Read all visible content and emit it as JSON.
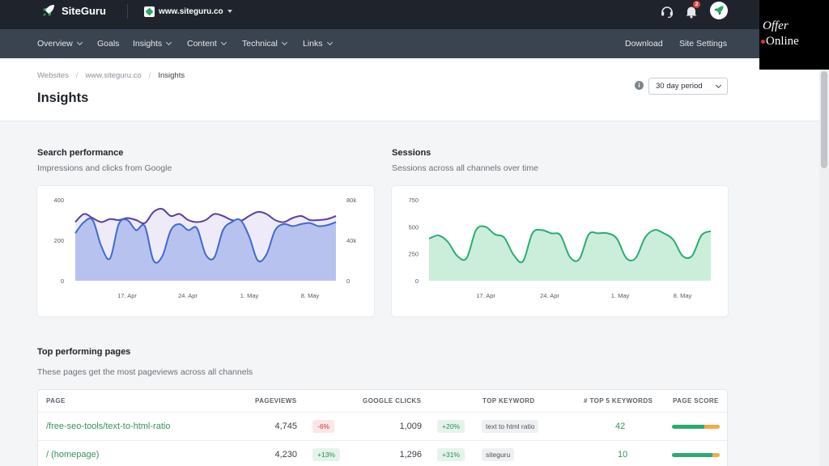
{
  "brand": {
    "name": "SiteGuru",
    "accent": "#2aa866",
    "topbar_bg": "#1f242c",
    "nav_bg": "#3a4350"
  },
  "site_selector": {
    "value": "www.siteguru.co"
  },
  "notifications": {
    "count": "2"
  },
  "watermark": {
    "line1": "Offer",
    "line2": "Online"
  },
  "nav": {
    "items": [
      {
        "label": "Overview",
        "dropdown": true
      },
      {
        "label": "Goals",
        "dropdown": false
      },
      {
        "label": "Insights",
        "dropdown": true
      },
      {
        "label": "Content",
        "dropdown": true
      },
      {
        "label": "Technical",
        "dropdown": true
      },
      {
        "label": "Links",
        "dropdown": true
      }
    ],
    "right": [
      {
        "label": "Download"
      },
      {
        "label": "Site Settings"
      }
    ]
  },
  "breadcrumb": [
    "Websites",
    "www.siteguru.co",
    "Insights"
  ],
  "page_title": "Insights",
  "period_select": {
    "value": "30 day period"
  },
  "search_section": {
    "title": "Search performance",
    "subtitle": "Impressions and clicks from Google"
  },
  "sessions_section": {
    "title": "Sessions",
    "subtitle": "Sessions across all channels over time"
  },
  "chart_data": [
    {
      "type": "area",
      "title": "Search performance",
      "x_ticks": [
        "17. Apr",
        "24. Apr",
        "1. May",
        "8. May"
      ],
      "y_left_ticks": [
        "0",
        "200",
        "400"
      ],
      "y_right_ticks": [
        "0",
        "40k",
        "80k"
      ],
      "ylim_left": [
        0,
        400
      ],
      "ylim_right": [
        0,
        80000
      ],
      "series": [
        {
          "values": [
            290,
            330,
            310,
            290,
            305,
            300,
            310,
            300,
            285,
            340,
            355,
            320,
            330,
            300,
            290,
            300,
            330,
            320,
            300,
            295,
            320,
            340,
            330,
            300,
            290,
            310,
            320,
            300,
            300,
            305,
            320
          ],
          "color": "#5b3f9e",
          "fill": "#eeeaf8"
        },
        {
          "values": [
            235,
            290,
            300,
            170,
            110,
            280,
            300,
            250,
            270,
            100,
            120,
            250,
            280,
            250,
            260,
            130,
            115,
            250,
            290,
            300,
            220,
            100,
            130,
            250,
            280,
            270,
            280,
            285,
            270,
            275,
            290
          ],
          "color": "#3f6ad0",
          "fill": "#b7c3ee"
        }
      ]
    },
    {
      "type": "area",
      "title": "Sessions",
      "x_ticks": [
        "17. Apr",
        "24. Apr",
        "1. May",
        "8. May"
      ],
      "y_ticks": [
        "0",
        "250",
        "500",
        "750"
      ],
      "ylim": [
        0,
        750
      ],
      "series": [
        {
          "values": [
            390,
            420,
            360,
            230,
            210,
            470,
            500,
            430,
            400,
            240,
            180,
            440,
            470,
            440,
            420,
            220,
            200,
            430,
            440,
            440,
            390,
            210,
            210,
            400,
            470,
            440,
            380,
            230,
            230,
            420,
            460
          ],
          "color": "#27ad73",
          "fill": "#cbeeda"
        }
      ]
    }
  ],
  "top_pages": {
    "title": "Top performing pages",
    "subtitle": "These pages get the most pageviews across all channels",
    "columns": [
      "PAGE",
      "PAGEVIEWS",
      "GOOGLE CLICKS",
      "TOP KEYWORD",
      "# TOP 5 KEYWORDS",
      "PAGE SCORE"
    ],
    "rows": [
      {
        "page": "/free-seo-tools/text-to-html-ratio",
        "pageviews": "4,745",
        "pv_delta": "-6%",
        "pv_dir": "neg",
        "clicks": "1,009",
        "cl_delta": "+20%",
        "cl_dir": "pos",
        "keyword": "text to html ratio",
        "top5": "42",
        "score_green": 0.68,
        "score_orange": 0.32
      },
      {
        "page": "/ (homepage)",
        "pageviews": "4,230",
        "pv_delta": "+13%",
        "pv_dir": "pos",
        "clicks": "1,296",
        "cl_delta": "+31%",
        "cl_dir": "pos",
        "keyword": "siteguru",
        "top5": "10",
        "score_green": 0.85,
        "score_orange": 0.15
      }
    ]
  }
}
